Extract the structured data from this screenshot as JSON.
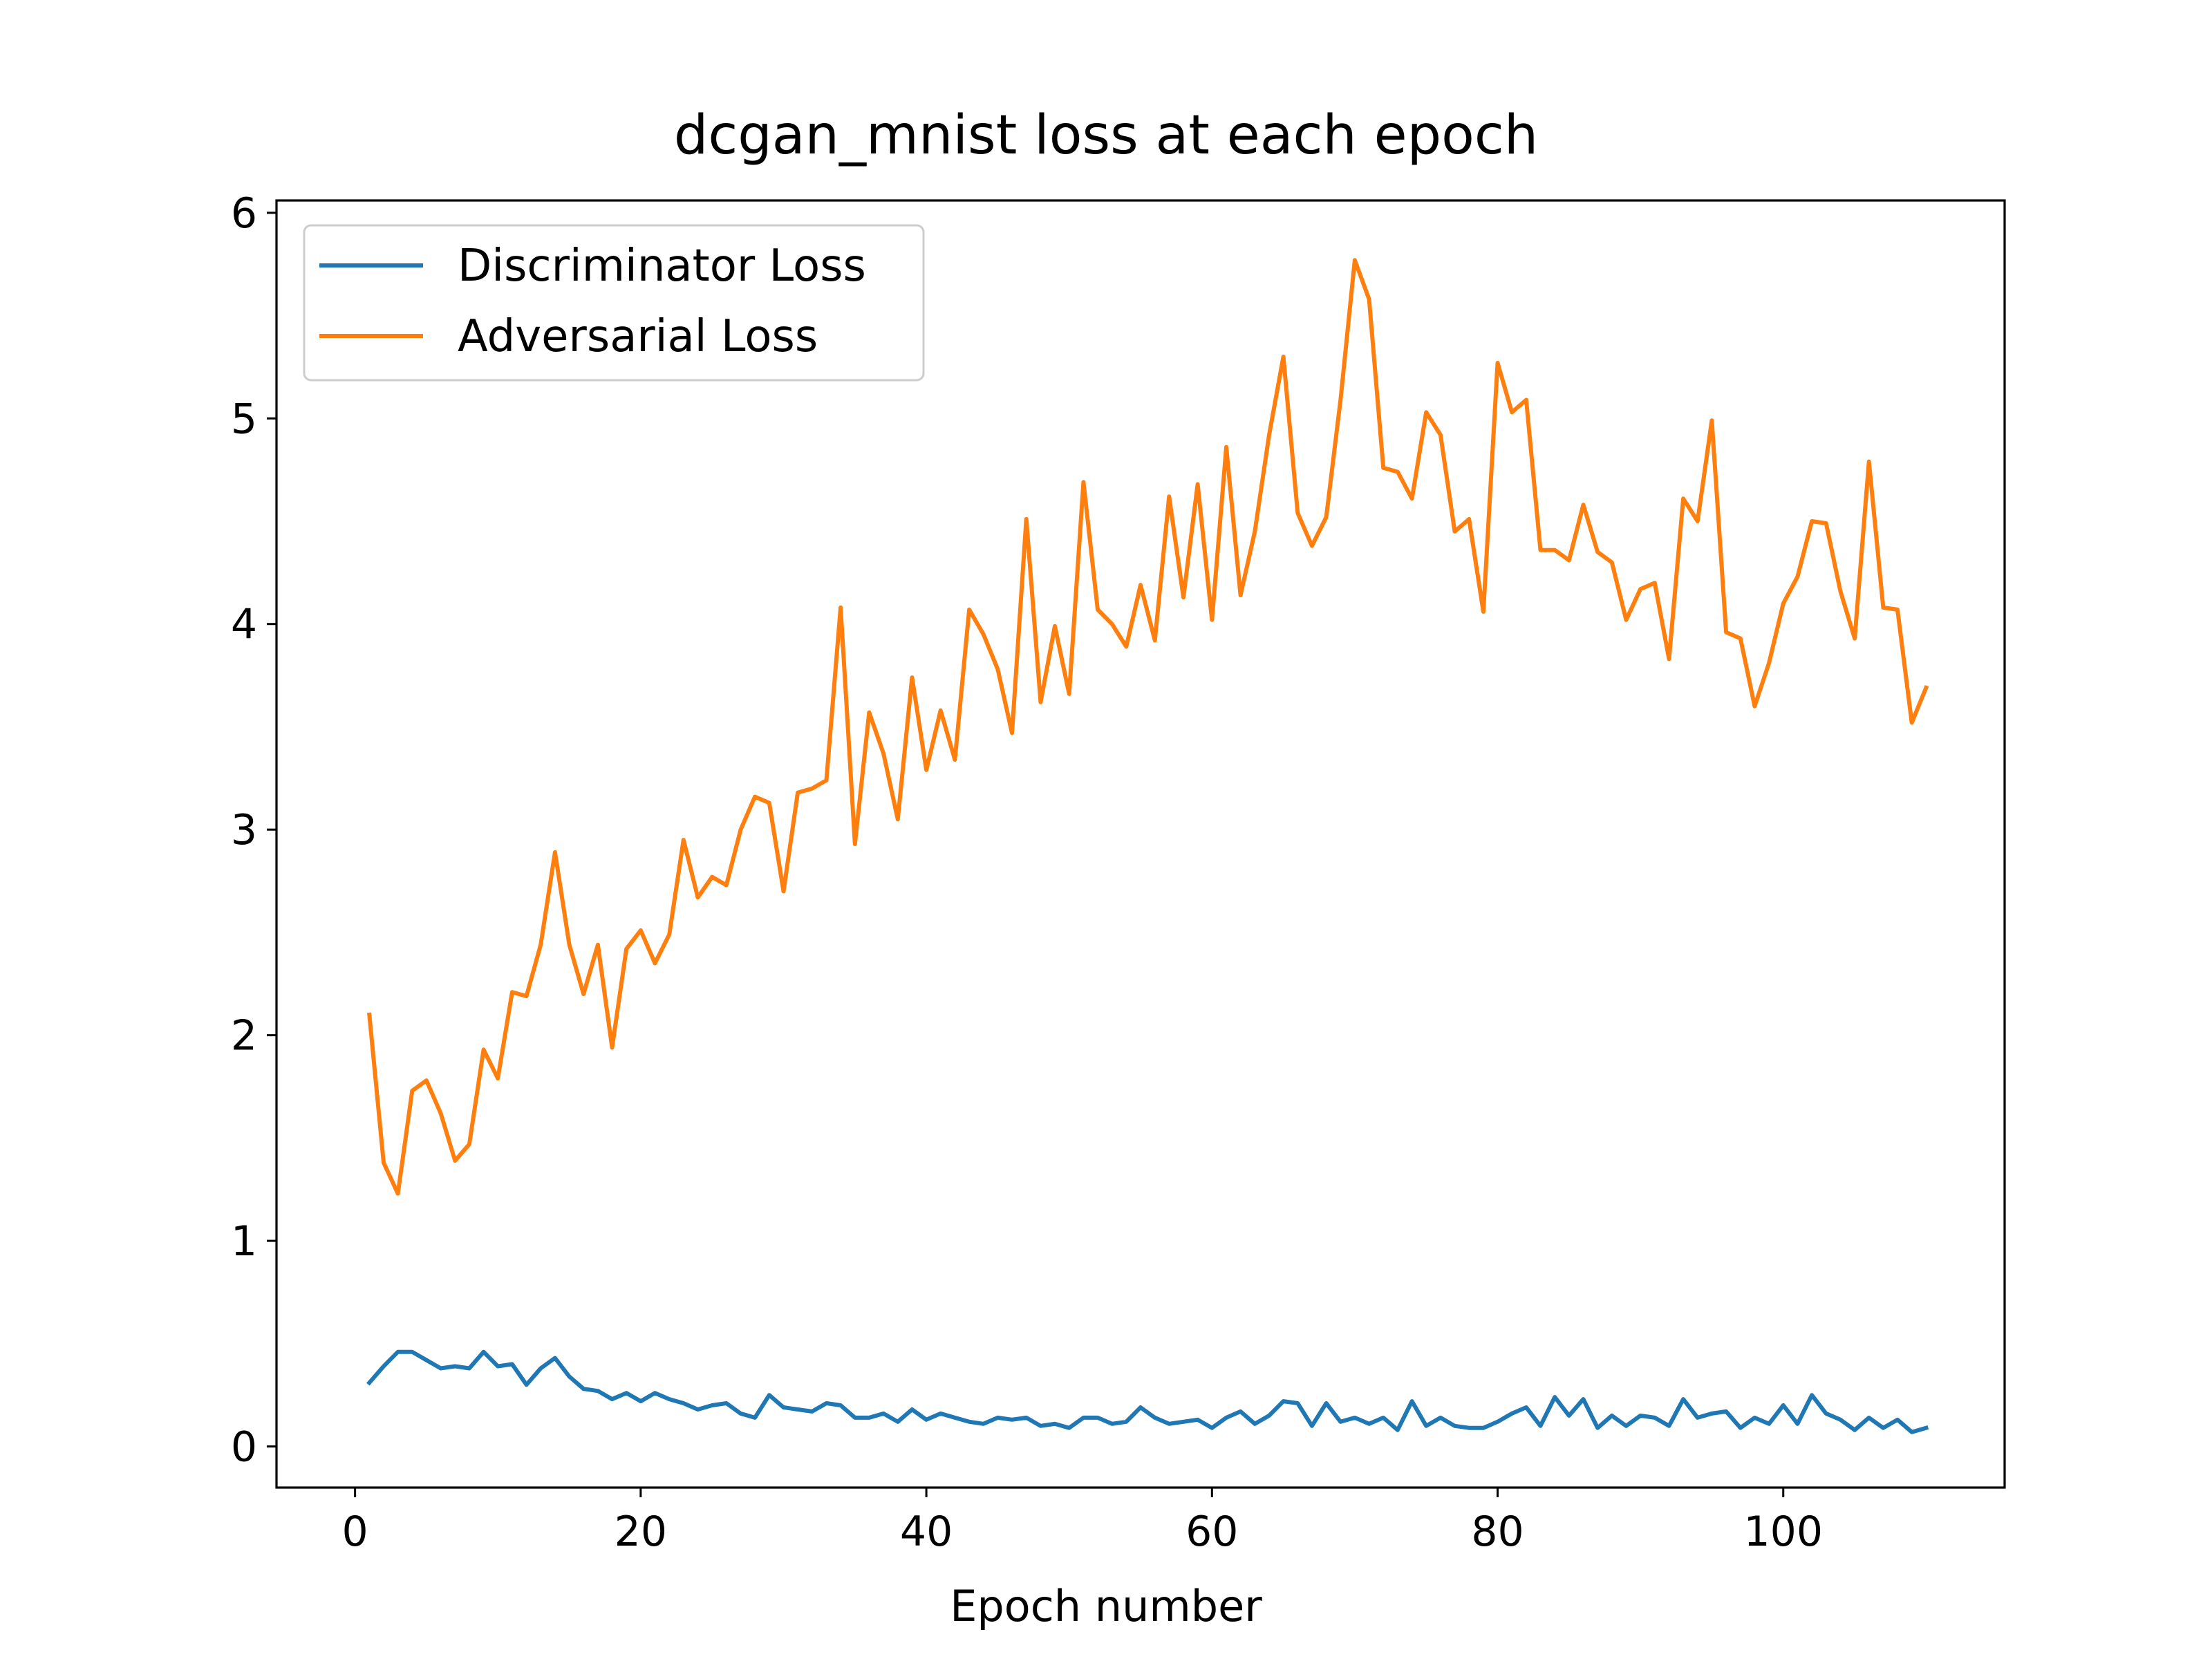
{
  "chart_data": {
    "type": "line",
    "title": "dcgan_mnist loss at each epoch",
    "xlabel": "Epoch number",
    "ylabel": "",
    "xlim": [
      -5.5,
      115.5
    ],
    "ylim": [
      -0.2,
      6.06
    ],
    "xticks": [
      0,
      20,
      40,
      60,
      80,
      100
    ],
    "yticks": [
      0,
      1,
      2,
      3,
      4,
      5,
      6
    ],
    "xtick_labels": [
      "0",
      "20",
      "40",
      "60",
      "80",
      "100"
    ],
    "ytick_labels": [
      "0",
      "1",
      "2",
      "3",
      "4",
      "5",
      "6"
    ],
    "grid": false,
    "legend_position": "top-left",
    "x_start": 1,
    "x_end": 110,
    "series": [
      {
        "name": "Discriminator Loss",
        "color": "#1f77b4",
        "values": [
          0.31,
          0.39,
          0.46,
          0.46,
          0.42,
          0.38,
          0.39,
          0.38,
          0.46,
          0.39,
          0.4,
          0.3,
          0.38,
          0.43,
          0.34,
          0.28,
          0.27,
          0.23,
          0.26,
          0.22,
          0.26,
          0.23,
          0.21,
          0.18,
          0.2,
          0.21,
          0.16,
          0.14,
          0.25,
          0.19,
          0.18,
          0.17,
          0.21,
          0.2,
          0.14,
          0.14,
          0.16,
          0.12,
          0.18,
          0.13,
          0.16,
          0.14,
          0.12,
          0.11,
          0.14,
          0.13,
          0.14,
          0.1,
          0.11,
          0.09,
          0.14,
          0.14,
          0.11,
          0.12,
          0.19,
          0.14,
          0.11,
          0.12,
          0.13,
          0.09,
          0.14,
          0.17,
          0.11,
          0.15,
          0.22,
          0.21,
          0.1,
          0.21,
          0.12,
          0.14,
          0.11,
          0.14,
          0.08,
          0.22,
          0.1,
          0.14,
          0.1,
          0.09,
          0.09,
          0.12,
          0.16,
          0.19,
          0.1,
          0.24,
          0.15,
          0.23,
          0.09,
          0.15,
          0.1,
          0.15,
          0.14,
          0.1,
          0.23,
          0.14,
          0.16,
          0.17,
          0.09,
          0.14,
          0.11,
          0.2,
          0.11,
          0.25,
          0.16,
          0.13,
          0.08,
          0.14,
          0.09,
          0.13,
          0.07,
          0.09
        ]
      },
      {
        "name": "Adversarial Loss",
        "color": "#ff7f0e",
        "values": [
          2.1,
          1.38,
          1.23,
          1.73,
          1.78,
          1.62,
          1.39,
          1.47,
          1.93,
          1.79,
          2.21,
          2.19,
          2.44,
          2.89,
          2.44,
          2.2,
          2.44,
          1.94,
          2.42,
          2.51,
          2.35,
          2.49,
          2.95,
          2.67,
          2.77,
          2.73,
          3.0,
          3.16,
          3.13,
          2.7,
          3.18,
          3.2,
          3.24,
          4.08,
          2.93,
          3.57,
          3.37,
          3.05,
          3.74,
          3.29,
          3.58,
          3.34,
          4.07,
          3.95,
          3.78,
          3.47,
          4.51,
          3.62,
          3.99,
          3.66,
          4.69,
          4.07,
          4.0,
          3.89,
          4.19,
          3.92,
          4.62,
          4.13,
          4.68,
          4.02,
          4.86,
          4.14,
          4.45,
          4.92,
          5.3,
          4.54,
          4.38,
          4.52,
          5.09,
          5.77,
          5.58,
          4.76,
          4.74,
          4.61,
          5.03,
          4.92,
          4.45,
          4.51,
          4.06,
          5.27,
          5.03,
          5.09,
          4.36,
          4.36,
          4.31,
          4.58,
          4.35,
          4.3,
          4.02,
          4.17,
          4.2,
          3.83,
          4.61,
          4.5,
          4.99,
          3.96,
          3.93,
          3.6,
          3.81,
          4.1,
          4.23,
          4.5,
          4.49,
          4.16,
          3.93,
          4.79,
          4.08,
          4.07,
          3.52,
          3.69
        ]
      }
    ]
  }
}
